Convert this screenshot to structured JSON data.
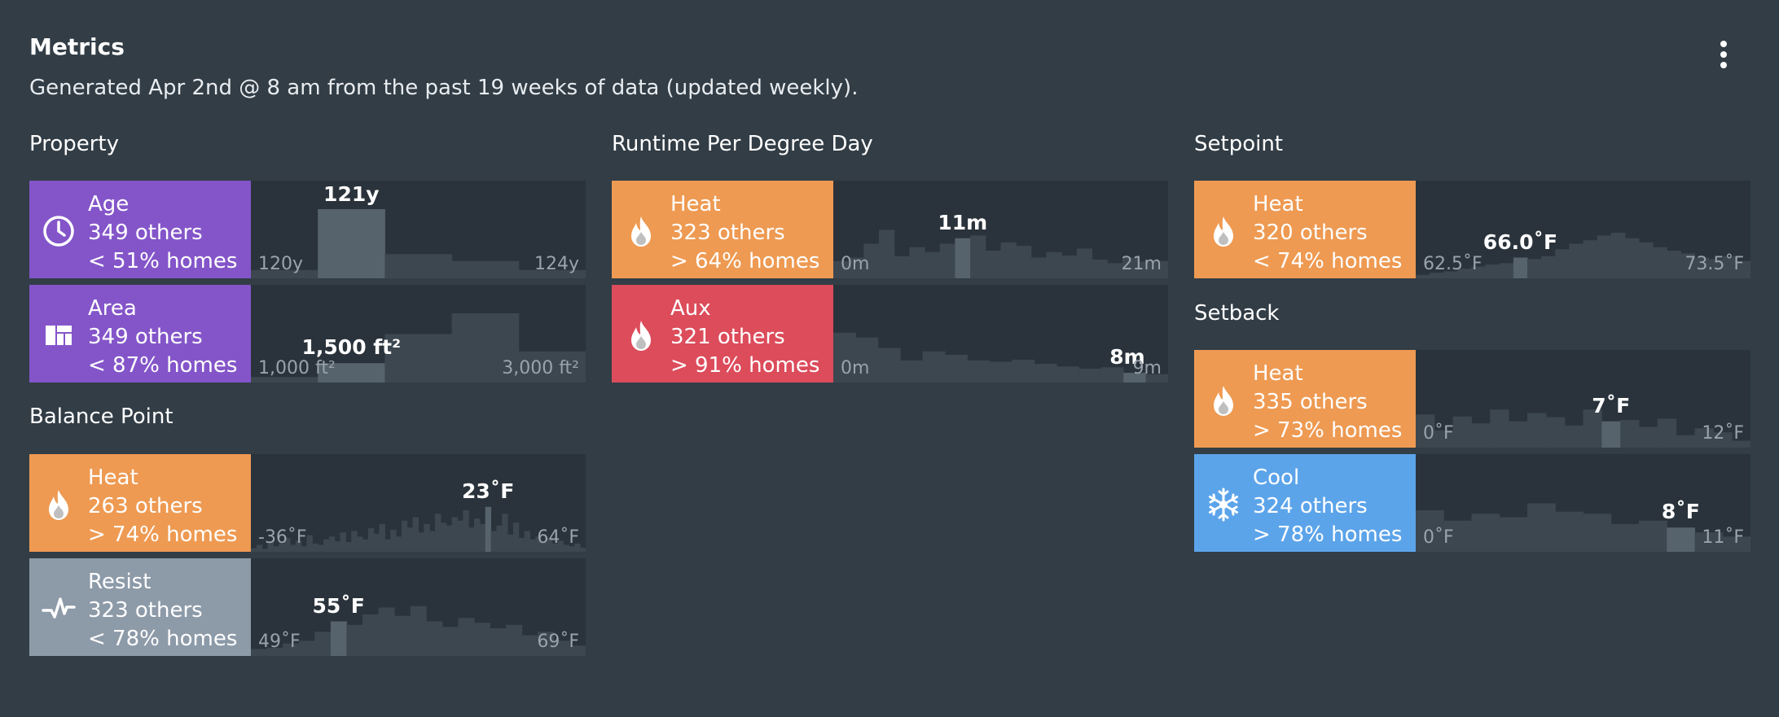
{
  "header": {
    "title": "Metrics",
    "subtitle": "Generated Apr 2nd @ 8 am from the past 19 weeks of data (updated weekly)."
  },
  "colors": {
    "background": "#323d46",
    "histogram_bg": "#2a333b",
    "bar": "#3c4750",
    "highlight": "#56626c",
    "property": "#8455c9",
    "heat": "#ee9a52",
    "aux": "#dc4c5b",
    "cool": "#5ca4ea",
    "resist": "#8d9aa8"
  },
  "sections": {
    "property": "Property",
    "runtime": "Runtime Per Degree Day",
    "setpoint": "Setpoint",
    "balance": "Balance Point",
    "setback": "Setback"
  },
  "metrics": {
    "age": {
      "label": "Age",
      "others": "349 others",
      "homes": "< 51% homes",
      "icon": "clock-icon",
      "color": "property",
      "value": "121y",
      "min": "120y",
      "max": "124y",
      "bars": [
        0.12,
        1.0,
        0.35,
        0.25,
        0.12
      ],
      "highlight": 1
    },
    "area": {
      "label": "Area",
      "others": "349 others",
      "homes": "< 87% homes",
      "icon": "floorplan-icon",
      "color": "property",
      "value": "1,500 ft²",
      "min": "1,000 ft²",
      "max": "3,000 ft²",
      "bars": [
        0.08,
        0.28,
        0.7,
        1.0,
        0.45
      ],
      "highlight": 1
    },
    "runtime_heat": {
      "label": "Heat",
      "others": "323 others",
      "homes": "> 64% homes",
      "icon": "flame-icon",
      "color": "heat",
      "value": "11m",
      "min": "0m",
      "max": "21m",
      "bars": [
        0.25,
        0.3,
        0.5,
        0.7,
        0.32,
        0.45,
        0.38,
        0.5,
        0.58,
        0.62,
        0.4,
        0.52,
        0.47,
        0.3,
        0.38,
        0.33,
        0.43,
        0.27,
        0.22,
        0.3,
        0.24,
        0.25
      ],
      "highlight": 8
    },
    "runtime_aux": {
      "label": "Aux",
      "others": "321 others",
      "homes": "> 91% homes",
      "icon": "flame-icon",
      "color": "aux",
      "value": "8m",
      "min": "0m",
      "max": "9m",
      "bars": [
        0.72,
        0.65,
        0.5,
        0.32,
        0.45,
        0.4,
        0.32,
        0.3,
        0.33,
        0.27,
        0.23,
        0.2,
        0.22,
        0.14,
        0.12
      ],
      "highlight": 13
    },
    "setpoint_heat": {
      "label": "Heat",
      "others": "320 others",
      "homes": "< 74% homes",
      "icon": "flame-icon",
      "color": "heat",
      "value": "66.0˚F",
      "min": "62.5˚F",
      "max": "73.5˚F",
      "bars": [
        0.05,
        0.08,
        0.1,
        0.14,
        0.17,
        0.2,
        0.22,
        0.3,
        0.28,
        0.32,
        0.42,
        0.5,
        0.55,
        0.62,
        0.66,
        0.58,
        0.52,
        0.45,
        0.4,
        0.36,
        0.3,
        0.28,
        0.32,
        0.25
      ],
      "highlight": 7
    },
    "setback_heat": {
      "label": "Heat",
      "others": "335 others",
      "homes": "> 73% homes",
      "icon": "flame-icon",
      "color": "heat",
      "value": "7˚F",
      "min": "0˚F",
      "max": "12˚F",
      "bars": [
        0.48,
        0.25,
        0.45,
        0.35,
        0.55,
        0.38,
        0.5,
        0.44,
        0.32,
        0.55,
        0.38,
        0.4,
        0.3,
        0.42,
        0.18,
        0.28,
        0.22,
        0.1
      ],
      "highlight": 10
    },
    "setback_cool": {
      "label": "Cool",
      "others": "324 others",
      "homes": "> 78% homes",
      "icon": "snowflake-icon",
      "color": "cool",
      "value": "8˚F",
      "min": "0˚F",
      "max": "11˚F",
      "bars": [
        0.6,
        0.45,
        0.55,
        0.5,
        0.7,
        0.58,
        0.55,
        0.4,
        0.45,
        0.35,
        0.28,
        0.22
      ],
      "highlight": 9
    },
    "balance_heat": {
      "label": "Heat",
      "others": "263 others",
      "homes": "> 74% homes",
      "icon": "flame-icon",
      "color": "heat",
      "value": "23˚F",
      "min": "-36˚F",
      "max": "64˚F",
      "bars": [
        0.05,
        0.1,
        0.04,
        0.15,
        0.08,
        0.12,
        0.2,
        0.1,
        0.16,
        0.08,
        0.24,
        0.12,
        0.1,
        0.18,
        0.22,
        0.15,
        0.28,
        0.14,
        0.3,
        0.22,
        0.18,
        0.34,
        0.26,
        0.4,
        0.18,
        0.32,
        0.22,
        0.45,
        0.35,
        0.5,
        0.28,
        0.4,
        0.3,
        0.55,
        0.42,
        0.38,
        0.5,
        0.45,
        0.6,
        0.35,
        0.48,
        0.4,
        0.65,
        0.3,
        0.38,
        0.55,
        0.25,
        0.42,
        0.2,
        0.3,
        0.18,
        0.22,
        0.14,
        0.2,
        0.12,
        0.16,
        0.1,
        0.08,
        0.12,
        0.06
      ],
      "highlight": 42
    },
    "balance_resist": {
      "label": "Resist",
      "others": "323 others",
      "homes": "< 78% homes",
      "icon": "pulse-icon",
      "color": "resist",
      "value": "55˚F",
      "min": "49˚F",
      "max": "69˚F",
      "bars": [
        0.1,
        0.12,
        0.18,
        0.22,
        0.35,
        0.5,
        0.45,
        0.6,
        0.7,
        0.58,
        0.72,
        0.5,
        0.42,
        0.55,
        0.48,
        0.4,
        0.45,
        0.3,
        0.35,
        0.22,
        0.15
      ],
      "highlight": 5
    }
  }
}
